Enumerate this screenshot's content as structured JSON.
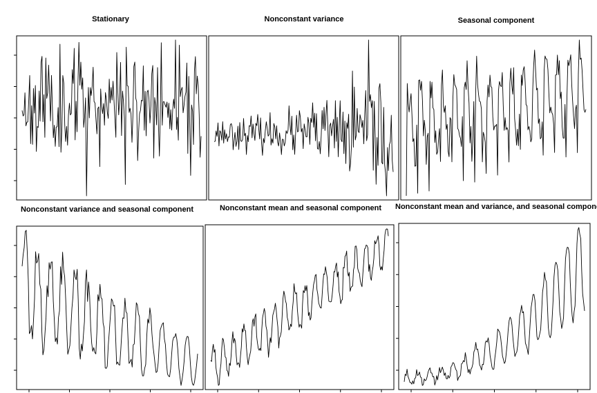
{
  "chart_data": [
    {
      "type": "line",
      "title": "Stationary",
      "pattern": "stationary",
      "seed": 11,
      "n": 190
    },
    {
      "type": "line",
      "title": "Nonconstant variance",
      "pattern": "variance",
      "seed": 23,
      "n": 190
    },
    {
      "type": "line",
      "title": "Seasonal component",
      "pattern": "seasonal",
      "seed": 37,
      "n": 190
    },
    {
      "type": "line",
      "title": "Nonconstant variance and seasonal component",
      "pattern": "variance_seasonal",
      "seed": 41,
      "n": 170
    },
    {
      "type": "line",
      "title": "Nonconstant mean and seasonal component",
      "pattern": "mean_seasonal",
      "seed": 53,
      "n": 210
    },
    {
      "type": "line",
      "title": "Nonconstant mean and variance, and seasonal component",
      "pattern": "mean_variance_seasonal",
      "seed": 67,
      "n": 190
    }
  ]
}
